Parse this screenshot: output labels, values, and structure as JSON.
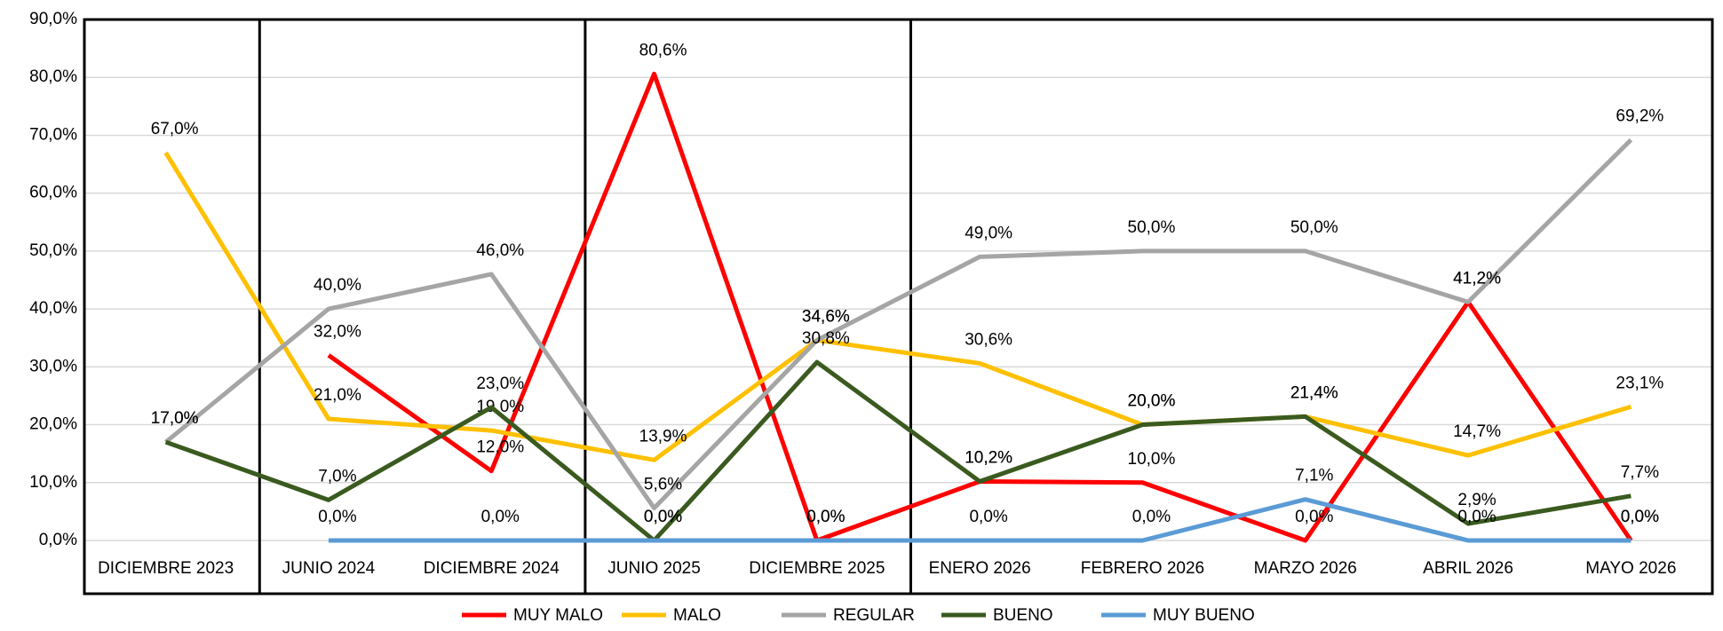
{
  "chart_data": {
    "type": "line",
    "categories": [
      "DICIEMBRE 2023",
      "JUNIO 2024",
      "DICIEMBRE 2024",
      "JUNIO 2025",
      "DICIEMBRE 2025",
      "ENERO 2026",
      "FEBRERO 2026",
      "MARZO 2026",
      "ABRIL 2026",
      "MAYO 2026"
    ],
    "series": [
      {
        "name": "MUY MALO",
        "color": "#ff0000",
        "values": [
          null,
          32.0,
          12.0,
          80.6,
          0.0,
          10.2,
          10.0,
          0.0,
          41.2,
          0.0
        ],
        "value_labels": [
          null,
          "32,0%",
          "12,0%",
          "80,6%",
          "0,0%",
          "10,2%",
          "10,0%",
          "0,0%",
          "41,2%",
          "0,0%"
        ]
      },
      {
        "name": "MALO",
        "color": "#ffc000",
        "values": [
          67.0,
          21.0,
          19.0,
          13.9,
          34.6,
          30.6,
          20.0,
          21.4,
          14.7,
          23.1
        ],
        "value_labels": [
          "67,0%",
          "21,0%",
          "19,0%",
          "13,9%",
          "34,6%",
          "30,6%",
          "20,0%",
          "21,4%",
          "14,7%",
          "23,1%"
        ]
      },
      {
        "name": "REGULAR",
        "color": "#a5a5a5",
        "values": [
          17.0,
          40.0,
          46.0,
          5.6,
          34.6,
          49.0,
          50.0,
          50.0,
          41.2,
          69.2
        ],
        "value_labels": [
          "17,0%",
          "40,0%",
          "46,0%",
          "5,6%",
          "34,6%",
          "49,0%",
          "50,0%",
          "50,0%",
          "41,2%",
          "69,2%"
        ]
      },
      {
        "name": "BUENO",
        "color": "#3a5a1f",
        "values": [
          17.0,
          7.0,
          23.0,
          0.0,
          30.8,
          10.2,
          20.0,
          21.4,
          2.9,
          7.7
        ],
        "value_labels": [
          "17,0%",
          "7,0%",
          "23,0%",
          "0,0%",
          "30,8%",
          "10,2%",
          "20,0%",
          "21,4%",
          "2,9%",
          "7,7%"
        ]
      },
      {
        "name": "MUY BUENO",
        "color": "#5b9bd5",
        "values": [
          null,
          0.0,
          0.0,
          0.0,
          0.0,
          0.0,
          0.0,
          7.1,
          0.0,
          0.0
        ],
        "value_labels": [
          null,
          "0,0%",
          "0,0%",
          "0,0%",
          "0,0%",
          "0,0%",
          "0,0%",
          "7,1%",
          "0,0%",
          "0,0%"
        ]
      }
    ],
    "ylim": [
      0,
      90
    ],
    "yticks": [
      {
        "value": 0,
        "label": "0,0%"
      },
      {
        "value": 10,
        "label": "10,0%"
      },
      {
        "value": 20,
        "label": "20,0%"
      },
      {
        "value": 30,
        "label": "30,0%"
      },
      {
        "value": 40,
        "label": "40,0%"
      },
      {
        "value": 50,
        "label": "50,0%"
      },
      {
        "value": 60,
        "label": "60,0%"
      },
      {
        "value": 70,
        "label": "70,0%"
      },
      {
        "value": 80,
        "label": "80,0%"
      },
      {
        "value": 90,
        "label": "90,0%"
      }
    ],
    "grid": true,
    "legend": "bottom"
  }
}
